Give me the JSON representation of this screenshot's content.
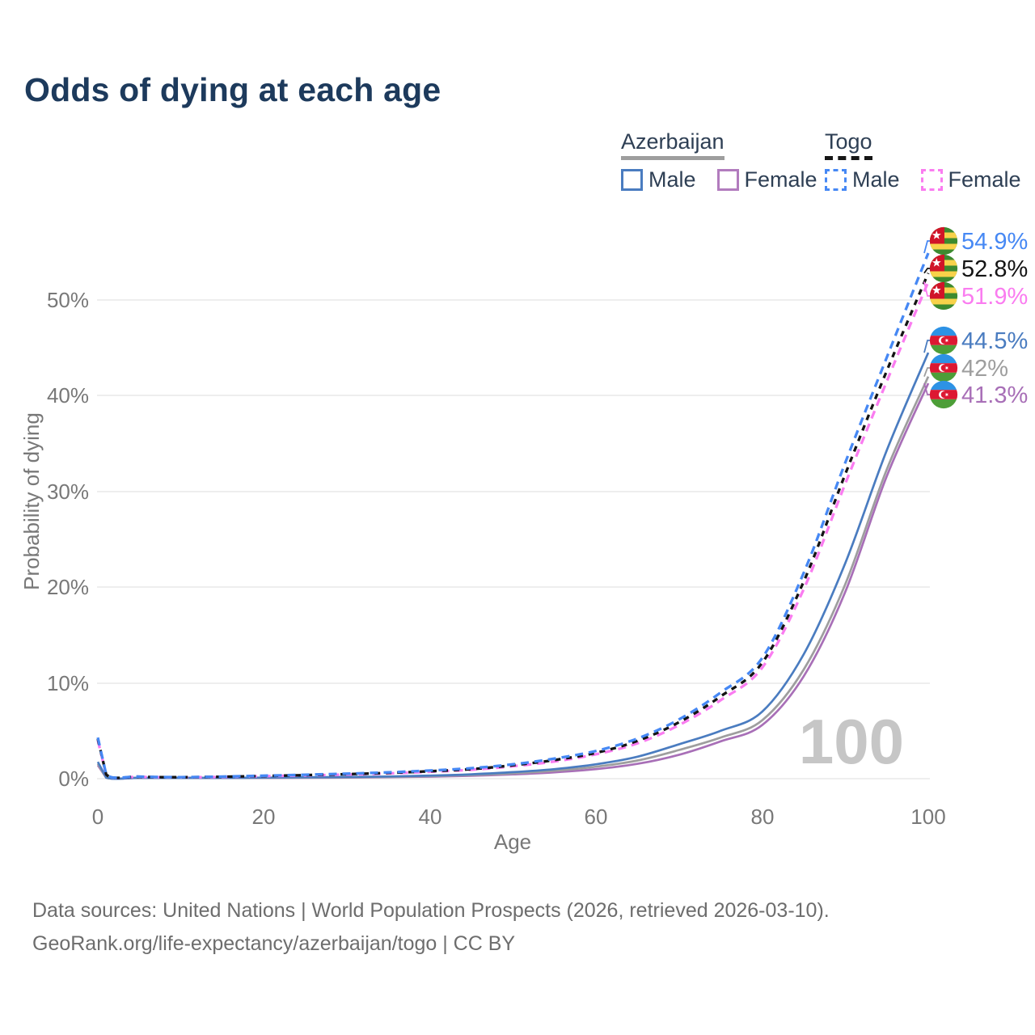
{
  "title": "Odds of dying at each age",
  "legend": {
    "groups": [
      {
        "country": "Azerbaijan",
        "line_style": "solid",
        "underline_color": "#9e9e9e",
        "items": [
          {
            "label": "Male",
            "color": "#4a7cc0"
          },
          {
            "label": "Female",
            "color": "#a86fb7"
          }
        ]
      },
      {
        "country": "Togo",
        "line_style": "dashed",
        "underline_color": "#161616",
        "items": [
          {
            "label": "Male",
            "color": "#4688f4"
          },
          {
            "label": "Female",
            "color": "#fa7cf0"
          }
        ]
      }
    ]
  },
  "watermark": "100",
  "footer": {
    "line1": "Data sources: United Nations | World Population Prospects (2026, retrieved 2026-03-10).",
    "line2": "GeoRank.org/life-expectancy/azerbaijan/togo | CC BY"
  },
  "chart_data": {
    "type": "line",
    "title": "Odds of dying at each age",
    "xlabel": "Age",
    "ylabel": "Probability of dying",
    "x_range": [
      0,
      100
    ],
    "ylim_pct": [
      0,
      57
    ],
    "grid": "horizontal",
    "legend_position": "top-right",
    "x_ticks": [
      "0",
      "20",
      "40",
      "60",
      "80",
      "100"
    ],
    "y_ticks": [
      "0%",
      "10%",
      "20%",
      "30%",
      "40%",
      "50%"
    ],
    "hover_age_cursor": "100",
    "ages": [
      0,
      1,
      5,
      10,
      15,
      20,
      25,
      30,
      35,
      40,
      45,
      50,
      55,
      60,
      65,
      70,
      75,
      80,
      85,
      90,
      95,
      100
    ],
    "series": [
      {
        "id": "togo-male",
        "country": "Togo",
        "sex": "Male",
        "color": "#4688f4",
        "line_style": "dashed",
        "flag": "togo-flag",
        "end_label": "54.9%",
        "end_value_pct": 54.9,
        "values": [
          4.3,
          0.45,
          0.22,
          0.16,
          0.22,
          0.31,
          0.41,
          0.52,
          0.66,
          0.85,
          1.1,
          1.5,
          2.1,
          2.9,
          4.2,
          6.2,
          9.0,
          12.6,
          21.5,
          33.0,
          44.0,
          54.9
        ]
      },
      {
        "id": "togo-both-sexes",
        "country": "Togo",
        "sex": "Both sexes",
        "color": "#141414",
        "line_style": "dashed",
        "flag": "togo-flag",
        "end_label": "52.8%",
        "end_value_pct": 52.8,
        "values": [
          4.15,
          0.43,
          0.2,
          0.15,
          0.2,
          0.28,
          0.37,
          0.47,
          0.6,
          0.78,
          1.0,
          1.4,
          1.95,
          2.7,
          3.95,
          5.9,
          8.6,
          12.1,
          20.6,
          31.8,
          42.6,
          52.8
        ]
      },
      {
        "id": "togo-female",
        "country": "Togo",
        "sex": "Female",
        "color": "#fa7cf0",
        "line_style": "dashed",
        "flag": "togo-flag",
        "end_label": "51.9%",
        "end_value_pct": 51.9,
        "values": [
          4.0,
          0.41,
          0.19,
          0.14,
          0.18,
          0.26,
          0.34,
          0.43,
          0.55,
          0.72,
          0.93,
          1.3,
          1.8,
          2.55,
          3.7,
          5.6,
          8.2,
          11.6,
          19.8,
          30.8,
          41.5,
          51.9
        ]
      },
      {
        "id": "azerbaijan-male",
        "country": "Azerbaijan",
        "sex": "Male",
        "color": "#4a7cc0",
        "line_style": "solid",
        "flag": "azerbaijan-flag",
        "end_label": "44.5%",
        "end_value_pct": 44.5,
        "values": [
          1.75,
          0.12,
          0.05,
          0.04,
          0.07,
          0.11,
          0.14,
          0.18,
          0.23,
          0.32,
          0.46,
          0.68,
          1.0,
          1.5,
          2.3,
          3.6,
          5.0,
          7.0,
          13.0,
          22.5,
          34.3,
          44.5
        ]
      },
      {
        "id": "azerbaijan-both-sexes",
        "country": "Azerbaijan",
        "sex": "Both sexes",
        "color": "#9e9e9e",
        "line_style": "solid",
        "flag": "azerbaijan-flag",
        "end_label": "42%",
        "end_value_pct": 42.0,
        "values": [
          1.55,
          0.11,
          0.045,
          0.035,
          0.055,
          0.09,
          0.11,
          0.14,
          0.19,
          0.26,
          0.38,
          0.56,
          0.83,
          1.25,
          1.9,
          3.0,
          4.3,
          6.1,
          11.4,
          20.3,
          32.3,
          42.0
        ]
      },
      {
        "id": "azerbaijan-female",
        "country": "Azerbaijan",
        "sex": "Female",
        "color": "#a86fb7",
        "line_style": "solid",
        "flag": "azerbaijan-flag",
        "end_label": "41.3%",
        "end_value_pct": 41.3,
        "values": [
          1.4,
          0.1,
          0.04,
          0.03,
          0.045,
          0.07,
          0.09,
          0.11,
          0.15,
          0.21,
          0.3,
          0.45,
          0.67,
          1.0,
          1.55,
          2.5,
          3.9,
          5.6,
          10.7,
          19.5,
          31.6,
          41.3
        ]
      }
    ]
  }
}
